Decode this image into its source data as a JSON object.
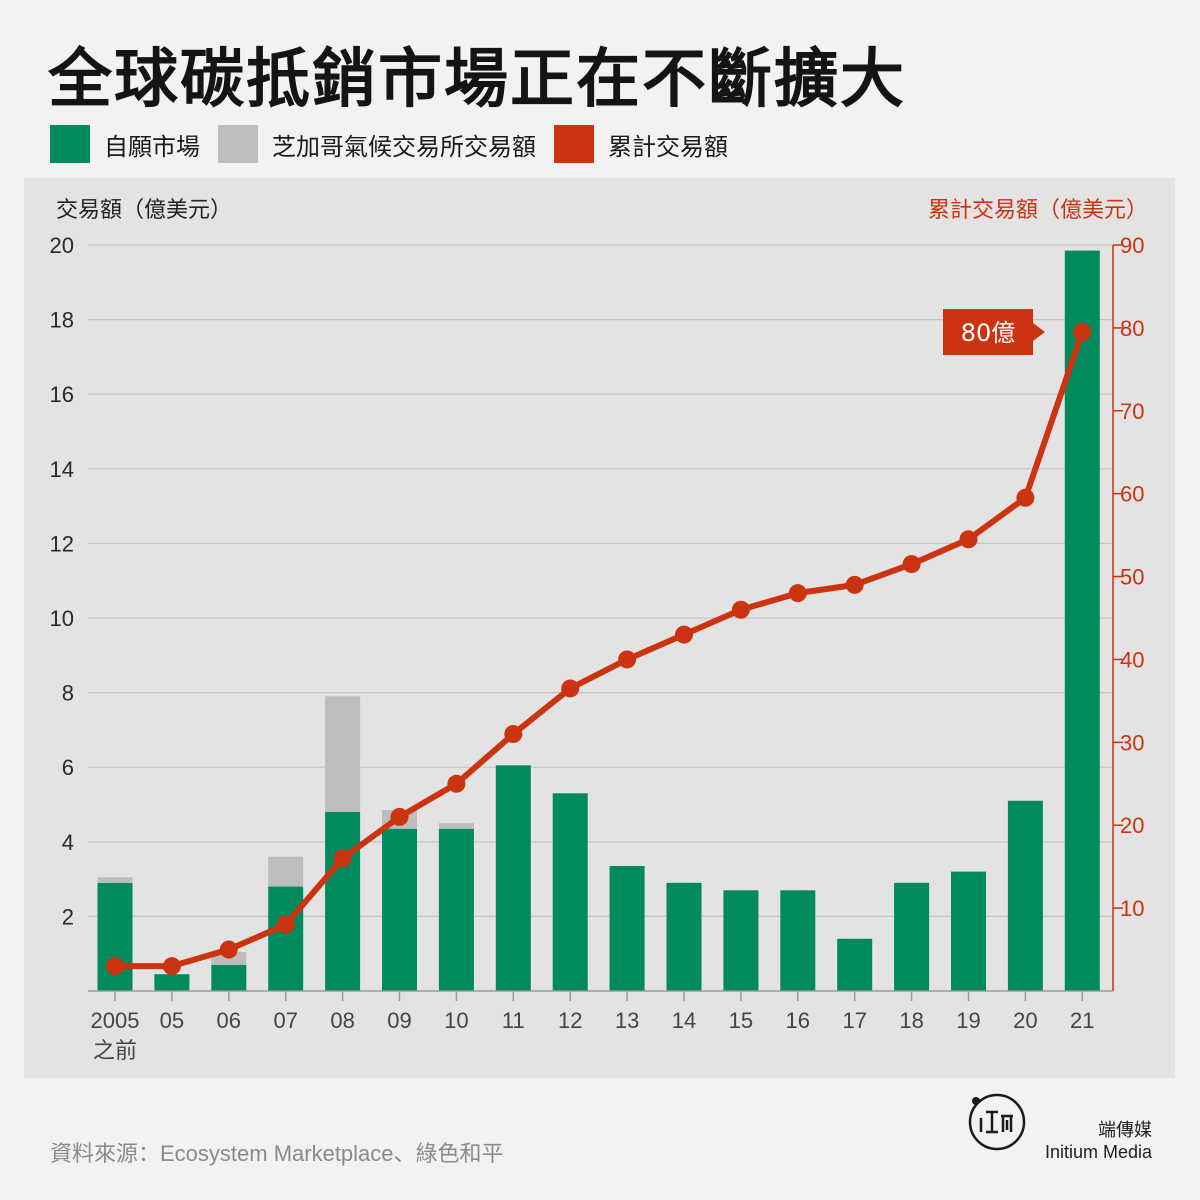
{
  "title": "全球碳抵銷市場正在不斷擴大",
  "legend": [
    {
      "label": "自願市場",
      "color": "#008a5e"
    },
    {
      "label": "芝加哥氣候交易所交易額",
      "color": "#bdbdbd"
    },
    {
      "label": "累計交易額",
      "color": "#cc3311"
    }
  ],
  "source": "資料來源：Ecosystem Marketplace、綠色和平",
  "brand": {
    "cn": "端傳媒",
    "en": "Initium Media"
  },
  "chart_data": {
    "type": "bar",
    "ylabel": "交易額（億美元）",
    "y2label": "累計交易額（億美元）",
    "ylim": [
      0,
      20
    ],
    "y2lim": [
      0,
      90
    ],
    "yticks": [
      "2",
      "4",
      "6",
      "8",
      "10",
      "12",
      "14",
      "16",
      "18",
      "20"
    ],
    "y2ticks": [
      "10",
      "20",
      "30",
      "40",
      "50",
      "60",
      "70",
      "80",
      "90"
    ],
    "categories": [
      "2005\n之前",
      "05",
      "06",
      "07",
      "08",
      "09",
      "10",
      "11",
      "12",
      "13",
      "14",
      "15",
      "16",
      "17",
      "18",
      "19",
      "20",
      "21"
    ],
    "stacked": true,
    "series": [
      {
        "name": "自願市場",
        "color": "#008a5e",
        "values": [
          2.9,
          0.45,
          0.7,
          2.8,
          4.8,
          4.35,
          4.35,
          6.05,
          5.3,
          3.35,
          2.9,
          2.7,
          2.7,
          1.4,
          2.9,
          3.2,
          5.1,
          19.85
        ]
      },
      {
        "name": "芝加哥氣候交易所交易額",
        "color": "#bdbdbd",
        "values": [
          0.15,
          0,
          0.35,
          0.8,
          3.1,
          0.5,
          0.15,
          0,
          0,
          0,
          0,
          0,
          0,
          0,
          0,
          0,
          0,
          0
        ]
      },
      {
        "name": "累計交易額",
        "color": "#cc3311",
        "axis": "right",
        "type": "line",
        "values": [
          3,
          3,
          5,
          8,
          16,
          21,
          25,
          31,
          36.5,
          40,
          43,
          46,
          48,
          49,
          51.5,
          54.5,
          59.5,
          79.5
        ]
      }
    ],
    "annotation": {
      "text": "80億",
      "index": 17,
      "series": 2
    }
  }
}
